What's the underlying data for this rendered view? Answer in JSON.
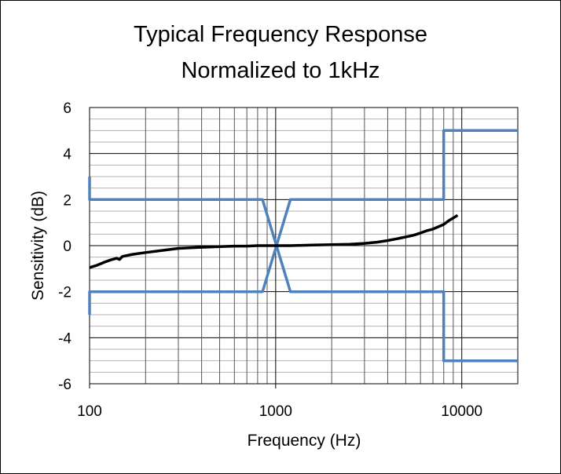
{
  "chart_data": {
    "type": "line",
    "title_lines": [
      "Typical Frequency Response",
      "Normalized to 1kHz"
    ],
    "xlabel": "Frequency (Hz)",
    "ylabel": "Sensitivity (dB)",
    "x_scale": "log",
    "xlim": [
      100,
      20000
    ],
    "ylim": [
      -6,
      6
    ],
    "x_ticks": [
      100,
      1000,
      10000
    ],
    "y_ticks": [
      -6,
      -4,
      -2,
      0,
      2,
      4,
      6
    ],
    "y_minor_step": 0.5,
    "grid": true,
    "series": [
      {
        "color": "#4F81BD",
        "points": [
          [
            100,
            3
          ],
          [
            100,
            2
          ],
          [
            850,
            2
          ],
          [
            1200,
            -2
          ],
          [
            8000,
            -2
          ],
          [
            8000,
            -5
          ],
          [
            20000,
            -5
          ]
        ]
      },
      {
        "color": "#4F81BD",
        "points": [
          [
            100,
            -3
          ],
          [
            100,
            -2
          ],
          [
            850,
            -2
          ],
          [
            1200,
            2
          ],
          [
            8000,
            2
          ],
          [
            8000,
            5
          ],
          [
            20000,
            5
          ]
        ]
      },
      {
        "color": "#000000",
        "points": [
          [
            100,
            -0.95
          ],
          [
            110,
            -0.85
          ],
          [
            120,
            -0.72
          ],
          [
            130,
            -0.62
          ],
          [
            140,
            -0.55
          ],
          [
            145,
            -0.6
          ],
          [
            150,
            -0.47
          ],
          [
            170,
            -0.38
          ],
          [
            200,
            -0.3
          ],
          [
            250,
            -0.2
          ],
          [
            300,
            -0.12
          ],
          [
            400,
            -0.07
          ],
          [
            500,
            -0.04
          ],
          [
            600,
            -0.02
          ],
          [
            700,
            -0.02
          ],
          [
            800,
            0
          ],
          [
            1000,
            0
          ],
          [
            1200,
            0
          ],
          [
            1500,
            0.02
          ],
          [
            2000,
            0.04
          ],
          [
            2500,
            0.06
          ],
          [
            3000,
            0.1
          ],
          [
            3500,
            0.15
          ],
          [
            4000,
            0.22
          ],
          [
            4500,
            0.3
          ],
          [
            5000,
            0.38
          ],
          [
            5500,
            0.45
          ],
          [
            6000,
            0.55
          ],
          [
            6500,
            0.65
          ],
          [
            7000,
            0.72
          ],
          [
            7500,
            0.82
          ],
          [
            8000,
            0.92
          ],
          [
            8500,
            1.08
          ],
          [
            9000,
            1.2
          ],
          [
            9500,
            1.32
          ]
        ]
      }
    ]
  }
}
